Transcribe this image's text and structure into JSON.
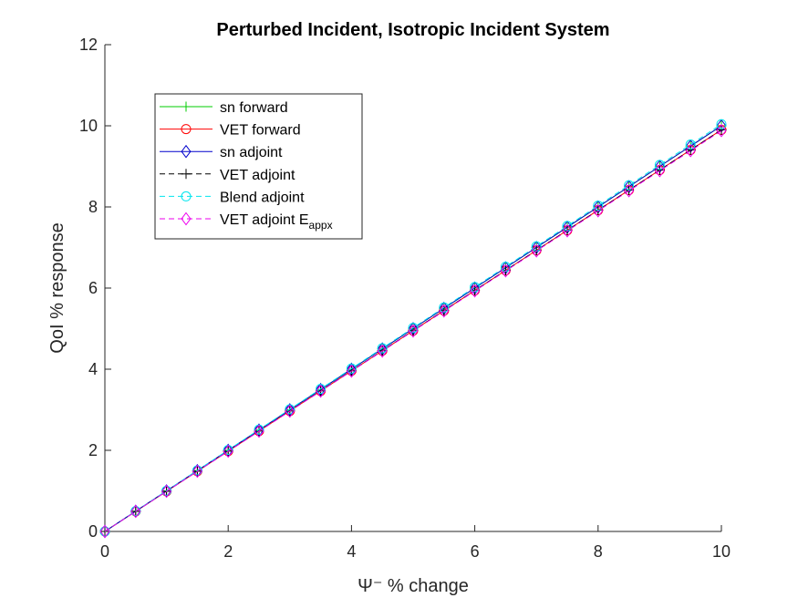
{
  "chart_data": {
    "type": "line",
    "title": "Perturbed Incident, Isotropic Incident System",
    "xlabel": "Ψ⁻ % change",
    "ylabel": "QoI % response",
    "xlim": [
      0,
      10
    ],
    "ylim": [
      0,
      12
    ],
    "xticks": [
      0,
      2,
      4,
      6,
      8,
      10
    ],
    "yticks": [
      0,
      2,
      4,
      6,
      8,
      10,
      12
    ],
    "grid": false,
    "legend_position": "top-left",
    "x": [
      0,
      0.5,
      1,
      1.5,
      2,
      2.5,
      3,
      3.5,
      4,
      4.5,
      5,
      5.5,
      6,
      6.5,
      7,
      7.5,
      8,
      8.5,
      9,
      9.5,
      10
    ],
    "series": [
      {
        "name": "sn forward",
        "color": "#00cc00",
        "line": "solid",
        "marker": "plus",
        "values": [
          0,
          0.5,
          1,
          1.5,
          2,
          2.5,
          3,
          3.5,
          4,
          4.5,
          5,
          5.5,
          6,
          6.5,
          7,
          7.5,
          8,
          8.5,
          9,
          9.5,
          10
        ]
      },
      {
        "name": "VET forward",
        "color": "#ff0000",
        "line": "solid",
        "marker": "circle",
        "values": [
          0,
          0.495,
          0.99,
          1.485,
          1.98,
          2.475,
          2.97,
          3.465,
          3.96,
          4.455,
          4.95,
          5.445,
          5.94,
          6.435,
          6.93,
          7.425,
          7.92,
          8.415,
          8.91,
          9.405,
          9.9
        ]
      },
      {
        "name": "sn adjoint",
        "color": "#0000cc",
        "line": "solid",
        "marker": "diamond",
        "values": [
          0,
          0.5,
          1,
          1.5,
          2,
          2.5,
          3,
          3.5,
          4,
          4.5,
          5,
          5.5,
          6,
          6.5,
          7,
          7.5,
          8,
          8.5,
          9,
          9.5,
          10
        ]
      },
      {
        "name": "VET adjoint",
        "color": "#000000",
        "line": "dashed",
        "marker": "plus",
        "values": [
          0,
          0.495,
          0.99,
          1.485,
          1.98,
          2.475,
          2.97,
          3.465,
          3.96,
          4.455,
          4.95,
          5.445,
          5.94,
          6.435,
          6.93,
          7.425,
          7.92,
          8.415,
          8.91,
          9.405,
          9.9
        ]
      },
      {
        "name": "Blend adjoint",
        "color": "#00e5ee",
        "line": "dashed",
        "marker": "circle",
        "values": [
          0,
          0.502,
          1.004,
          1.506,
          2.008,
          2.51,
          3.012,
          3.514,
          4.016,
          4.518,
          5.02,
          5.522,
          6.024,
          6.526,
          7.028,
          7.53,
          8.032,
          8.534,
          9.036,
          9.538,
          10.04
        ]
      },
      {
        "name": "VET adjoint E",
        "name_subscript": "appx",
        "color": "#ee00ee",
        "line": "dashed",
        "marker": "diamond",
        "values": [
          0,
          0.494,
          0.988,
          1.482,
          1.976,
          2.47,
          2.964,
          3.458,
          3.952,
          4.446,
          4.94,
          5.434,
          5.928,
          6.422,
          6.916,
          7.41,
          7.904,
          8.398,
          8.892,
          9.386,
          9.88
        ]
      }
    ]
  }
}
